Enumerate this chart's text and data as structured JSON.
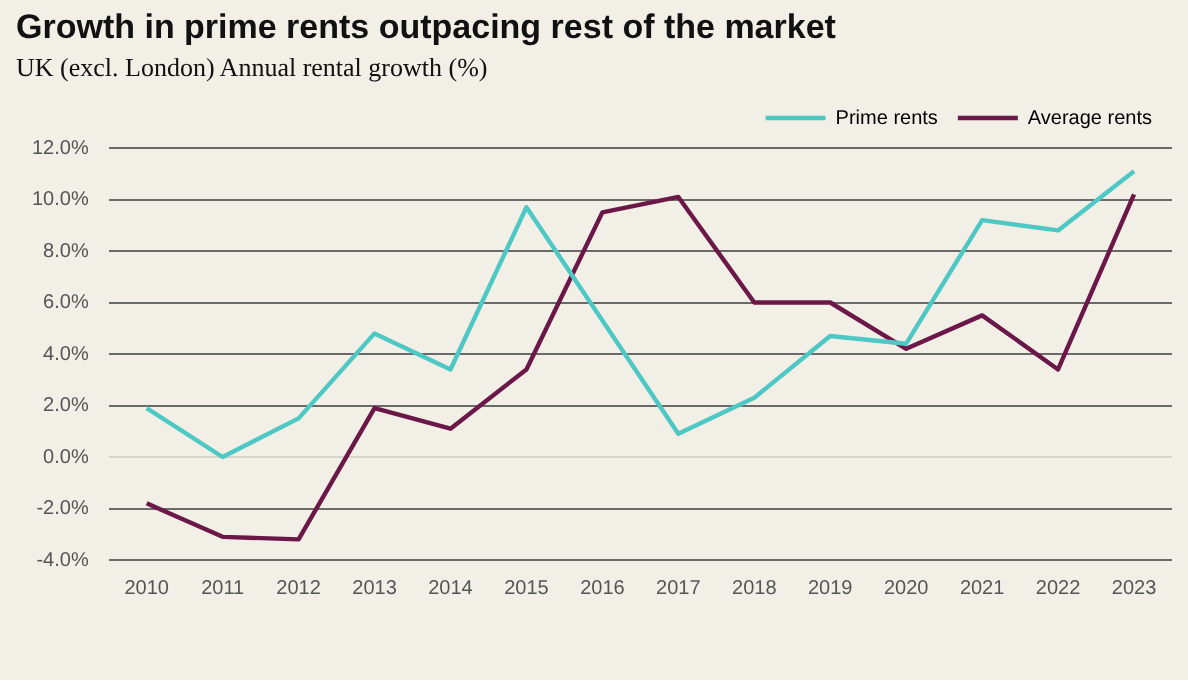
{
  "chart_data": {
    "type": "line",
    "title": "Growth in prime rents outpacing rest of the market",
    "subtitle": "UK (excl. London) Annual rental growth (%)",
    "categories": [
      "2010",
      "2011",
      "2012",
      "2013",
      "2014",
      "2015",
      "2016",
      "2017",
      "2018",
      "2019",
      "2020",
      "2021",
      "2022",
      "2023"
    ],
    "series": [
      {
        "name": "Prime rents",
        "color": "#4ec8c4",
        "values": [
          1.9,
          0.0,
          1.5,
          4.8,
          3.4,
          9.7,
          5.3,
          0.9,
          2.3,
          4.7,
          4.4,
          9.2,
          8.8,
          11.1
        ]
      },
      {
        "name": "Average rents",
        "color": "#6b1848",
        "values": [
          -1.8,
          -3.1,
          -3.2,
          1.9,
          1.1,
          3.4,
          9.5,
          10.1,
          6.0,
          6.0,
          4.2,
          5.5,
          3.4,
          10.2
        ]
      }
    ],
    "ylim": [
      -4,
      12
    ],
    "yticks": [
      {
        "value": -4,
        "label": "-4.0%"
      },
      {
        "value": -2,
        "label": "-2.0%"
      },
      {
        "value": 0,
        "label": "0.0%"
      },
      {
        "value": 2,
        "label": "2.0%"
      },
      {
        "value": 4,
        "label": "4.0%"
      },
      {
        "value": 6,
        "label": "6.0%"
      },
      {
        "value": 8,
        "label": "8.0%"
      },
      {
        "value": 10,
        "label": "10.0%"
      },
      {
        "value": 12,
        "label": "12.0%"
      }
    ],
    "grid": "y",
    "legend": "top right",
    "marker": "none",
    "line_style": "solid"
  }
}
